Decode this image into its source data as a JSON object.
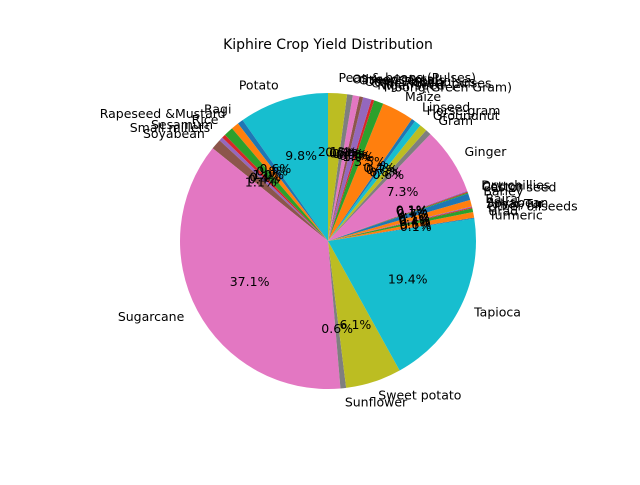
{
  "chart_data": {
    "type": "pie",
    "title": "Kiphire Crop Yield Distribution",
    "start_angle_deg": 90,
    "direction": "counterclockwise",
    "slices": [
      {
        "label": "Potato",
        "value": 9.5,
        "color": "#17becf"
      },
      {
        "label": "Ragi",
        "value": 0.6,
        "color": "#1f77b4"
      },
      {
        "label": "Rapeseed &Mustard",
        "value": 0.8,
        "color": "#ff7f0e"
      },
      {
        "label": "Rice",
        "value": 1.0,
        "color": "#2ca02c"
      },
      {
        "label": "Sesamum",
        "value": 0.4,
        "color": "#d62728"
      },
      {
        "label": "Small millets",
        "value": 0.4,
        "color": "#9467bd"
      },
      {
        "label": "Soyabean",
        "value": 1.1,
        "color": "#8c564b"
      },
      {
        "label": "Sugarcane",
        "value": 36.0,
        "color": "#e377c2"
      },
      {
        "label": "Sunflower",
        "value": 0.6,
        "color": "#7f7f7f"
      },
      {
        "label": "Sweet potato",
        "value": 5.9,
        "color": "#bcbd22"
      },
      {
        "label": "Tapioca",
        "value": 18.8,
        "color": "#17becf"
      },
      {
        "label": "Turmeric",
        "value": 0.1,
        "color": "#1f77b4"
      },
      {
        "label": "Urad",
        "value": 0.6,
        "color": "#ff7f0e"
      },
      {
        "label": "Other oilseeds",
        "value": 0.4,
        "color": "#2ca02c"
      },
      {
        "label": "Arhar/Tur",
        "value": 0.1,
        "color": "#d62728"
      },
      {
        "label": "Soyabean",
        "value": 0.1,
        "color": "#9467bd"
      },
      {
        "label": "Bajra",
        "value": 0.7,
        "color": "#ff7f0e"
      },
      {
        "label": "Barley",
        "value": 0.7,
        "color": "#1f77b4"
      },
      {
        "label": "Castor seed",
        "value": 0.1,
        "color": "#2ca02c"
      },
      {
        "label": "Cotton",
        "value": 0.1,
        "color": "#d62728"
      },
      {
        "label": "Dry chillies",
        "value": 0.1,
        "color": "#9467bd"
      },
      {
        "label": "Ginger",
        "value": 7.1,
        "color": "#e377c2"
      },
      {
        "label": "Gram",
        "value": 0.6,
        "color": "#7f7f7f"
      },
      {
        "label": "Groundnut",
        "value": 0.8,
        "color": "#bcbd22"
      },
      {
        "label": "Horse-gram",
        "value": 0.7,
        "color": "#17becf"
      },
      {
        "label": "Linseed",
        "value": 0.4,
        "color": "#1f77b4"
      },
      {
        "label": "Maize",
        "value": 3.4,
        "color": "#ff7f0e"
      },
      {
        "label": "Moong(Green Gram)",
        "value": 1.0,
        "color": "#2ca02c"
      },
      {
        "label": "Niger seed",
        "value": 0.3,
        "color": "#d62728"
      },
      {
        "label": "Other Kharif pulses",
        "value": 0.9,
        "color": "#9467bd"
      },
      {
        "label": "Other Rabi pulses",
        "value": 0.4,
        "color": "#8c564b"
      },
      {
        "label": "Other Cereals",
        "value": 0.7,
        "color": "#e377c2"
      },
      {
        "label": "Oilseeds total",
        "value": 0.6,
        "color": "#7f7f7f"
      },
      {
        "label": "Peas & beans (Pulses)",
        "value": 2.0,
        "color": "#bcbd22"
      }
    ]
  }
}
